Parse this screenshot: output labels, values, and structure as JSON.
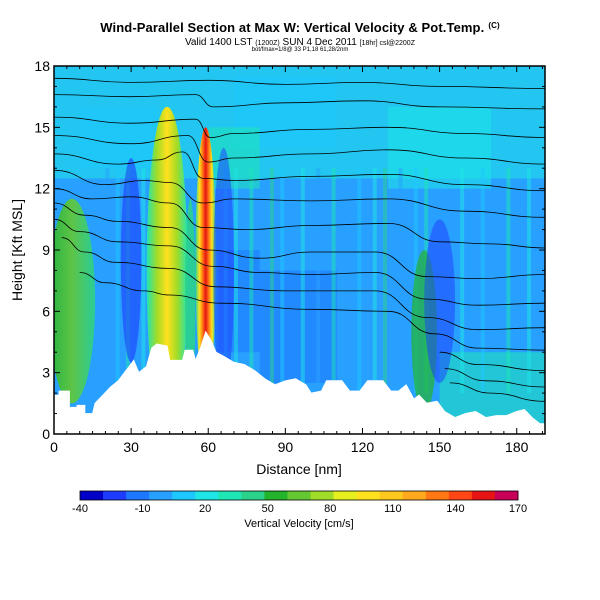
{
  "header": {
    "title": "Wind-Parallel Section at Max W: Vertical Velocity & Pot.Temp.",
    "title_tag": "(C)",
    "valid_line": "Valid 1400 LST",
    "valid_line_small1": "(1200Z)",
    "valid_line_mid": "SUN 4 Dec 2011",
    "valid_line_small2": "[18hr] csl@2200Z",
    "sub_line": "bot/fmax=1/8@ 33 P1,18 61,28/2nm"
  },
  "chart_data": {
    "type": "heatmap",
    "title": "Wind-Parallel Section at Max W: Vertical Velocity & Pot.Temp.",
    "xlabel": "Distance [nm]",
    "ylabel": "Height [Kft MSL]",
    "xlim": [
      0,
      191
    ],
    "ylim": [
      0,
      18
    ],
    "xticks": [
      "0",
      "30",
      "60",
      "90",
      "120",
      "150",
      "180"
    ],
    "xtick_values": [
      0,
      30,
      60,
      90,
      120,
      150,
      180
    ],
    "yticks": [
      "0",
      "3",
      "6",
      "9",
      "12",
      "15",
      "18"
    ],
    "ytick_values": [
      0,
      3,
      6,
      9,
      12,
      15,
      18
    ],
    "colorbar": {
      "label": "Vertical Velocity [cm/s]",
      "tick_labels": [
        "-40",
        "-10",
        "20",
        "50",
        "80",
        "110",
        "140",
        "170"
      ],
      "tick_values": [
        -40,
        -10,
        20,
        50,
        80,
        110,
        140,
        170
      ],
      "colors": [
        "#0000c8",
        "#1e3cff",
        "#1e78ff",
        "#28a0ff",
        "#1ec8ff",
        "#1ee6e6",
        "#1ee6b4",
        "#2ad28c",
        "#24b42c",
        "#64c832",
        "#a0dc28",
        "#e6f01e",
        "#ffe11e",
        "#ffc81e",
        "#ffaa1e",
        "#ff7814",
        "#ff4614",
        "#e61414",
        "#c8005a"
      ]
    },
    "terrain_kft": [
      [
        0,
        1.9
      ],
      [
        2,
        1.9
      ],
      [
        2,
        2.1
      ],
      [
        6,
        2.1
      ],
      [
        6,
        1.3
      ],
      [
        9,
        1.3
      ],
      [
        9,
        1.4
      ],
      [
        12,
        1.4
      ],
      [
        12,
        1.0
      ],
      [
        15,
        1.0
      ],
      [
        16,
        1.5
      ],
      [
        19,
        1.9
      ],
      [
        22,
        2.3
      ],
      [
        25,
        2.6
      ],
      [
        28,
        3.1
      ],
      [
        31,
        3.6
      ],
      [
        33,
        3.0
      ],
      [
        36,
        3.3
      ],
      [
        38,
        4.2
      ],
      [
        40,
        4.4
      ],
      [
        44,
        4.3
      ],
      [
        45,
        3.6
      ],
      [
        50,
        3.6
      ],
      [
        51,
        4.1
      ],
      [
        54,
        4.1
      ],
      [
        55,
        3.6
      ],
      [
        57,
        4.2
      ],
      [
        59,
        5.0
      ],
      [
        61,
        4.6
      ],
      [
        63,
        4.0
      ],
      [
        66,
        3.8
      ],
      [
        70,
        3.5
      ],
      [
        74,
        3.4
      ],
      [
        78,
        3.1
      ],
      [
        82,
        2.7
      ],
      [
        86,
        2.4
      ],
      [
        90,
        2.6
      ],
      [
        94,
        2.7
      ],
      [
        98,
        2.4
      ],
      [
        100,
        2.0
      ],
      [
        104,
        2.1
      ],
      [
        106,
        2.6
      ],
      [
        112,
        2.6
      ],
      [
        115,
        2.1
      ],
      [
        119,
        2.1
      ],
      [
        122,
        2.6
      ],
      [
        128,
        2.6
      ],
      [
        131,
        2.1
      ],
      [
        134,
        2.1
      ],
      [
        137,
        2.4
      ],
      [
        140,
        1.7
      ],
      [
        142,
        1.9
      ],
      [
        145,
        1.5
      ],
      [
        149,
        1.6
      ],
      [
        152,
        1.1
      ],
      [
        156,
        0.8
      ],
      [
        160,
        1.0
      ],
      [
        164,
        1.1
      ],
      [
        168,
        0.8
      ],
      [
        172,
        0.9
      ],
      [
        176,
        0.9
      ],
      [
        180,
        1.1
      ],
      [
        183,
        1.2
      ],
      [
        186,
        0.8
      ],
      [
        189,
        0.5
      ],
      [
        191,
        0.5
      ]
    ],
    "isentropes_kft": [
      [
        [
          0,
          17.4
        ],
        [
          30,
          17.2
        ],
        [
          60,
          17.3
        ],
        [
          90,
          17.1
        ],
        [
          120,
          17.2
        ],
        [
          150,
          17.0
        ],
        [
          191,
          16.9
        ]
      ],
      [
        [
          0,
          16.6
        ],
        [
          30,
          16.5
        ],
        [
          55,
          16.6
        ],
        [
          62,
          16.0
        ],
        [
          90,
          16.2
        ],
        [
          120,
          16.3
        ],
        [
          150,
          16.0
        ],
        [
          191,
          15.9
        ]
      ],
      [
        [
          0,
          15.5
        ],
        [
          30,
          15.2
        ],
        [
          55,
          15.4
        ],
        [
          61,
          14.5
        ],
        [
          70,
          14.7
        ],
        [
          100,
          14.9
        ],
        [
          130,
          15.0
        ],
        [
          160,
          14.7
        ],
        [
          191,
          14.5
        ]
      ],
      [
        [
          0,
          14.6
        ],
        [
          30,
          14.2
        ],
        [
          52,
          14.6
        ],
        [
          60,
          13.3
        ],
        [
          70,
          13.5
        ],
        [
          100,
          13.7
        ],
        [
          130,
          13.9
        ],
        [
          160,
          13.5
        ],
        [
          191,
          13.2
        ]
      ],
      [
        [
          0,
          13.7
        ],
        [
          25,
          13.2
        ],
        [
          40,
          13.4
        ],
        [
          50,
          13.8
        ],
        [
          58,
          12.5
        ],
        [
          70,
          12.4
        ],
        [
          100,
          12.6
        ],
        [
          130,
          12.7
        ],
        [
          160,
          12.2
        ],
        [
          191,
          11.9
        ]
      ],
      [
        [
          0,
          12.9
        ],
        [
          20,
          12.2
        ],
        [
          35,
          12.4
        ],
        [
          45,
          12.3
        ],
        [
          58,
          11.3
        ],
        [
          70,
          11.5
        ],
        [
          100,
          11.4
        ],
        [
          130,
          11.5
        ],
        [
          160,
          10.9
        ],
        [
          191,
          10.6
        ]
      ],
      [
        [
          0,
          12.0
        ],
        [
          15,
          11.5
        ],
        [
          30,
          11.6
        ],
        [
          45,
          11.3
        ],
        [
          58,
          10.1
        ],
        [
          75,
          10.0
        ],
        [
          100,
          10.2
        ],
        [
          130,
          10.3
        ],
        [
          150,
          9.4
        ],
        [
          170,
          9.3
        ],
        [
          191,
          9.1
        ]
      ],
      [
        [
          0,
          11.3
        ],
        [
          12,
          10.7
        ],
        [
          25,
          10.4
        ],
        [
          45,
          10.1
        ],
        [
          60,
          9.0
        ],
        [
          80,
          8.6
        ],
        [
          100,
          8.9
        ],
        [
          125,
          8.9
        ],
        [
          145,
          7.7
        ],
        [
          165,
          7.6
        ],
        [
          191,
          7.8
        ]
      ],
      [
        [
          0,
          10.5
        ],
        [
          10,
          9.9
        ],
        [
          25,
          9.4
        ],
        [
          45,
          9.2
        ],
        [
          62,
          8.2
        ],
        [
          80,
          7.9
        ],
        [
          100,
          7.8
        ],
        [
          125,
          7.9
        ],
        [
          145,
          6.6
        ],
        [
          165,
          6.3
        ],
        [
          191,
          6.4
        ]
      ],
      [
        [
          3,
          9.6
        ],
        [
          12,
          8.9
        ],
        [
          24,
          8.4
        ],
        [
          45,
          8.1
        ],
        [
          63,
          7.2
        ],
        [
          90,
          7.0
        ],
        [
          125,
          7.0
        ],
        [
          145,
          5.7
        ],
        [
          165,
          5.1
        ],
        [
          191,
          5.2
        ]
      ],
      [
        [
          10,
          7.9
        ],
        [
          20,
          7.4
        ],
        [
          35,
          7.0
        ],
        [
          45,
          6.8
        ],
        [
          65,
          6.4
        ],
        [
          100,
          6.1
        ],
        [
          130,
          6.0
        ],
        [
          148,
          4.9
        ],
        [
          165,
          4.2
        ],
        [
          191,
          4.1
        ]
      ],
      [
        [
          150,
          4.0
        ],
        [
          165,
          3.4
        ],
        [
          191,
          3.1
        ]
      ],
      [
        [
          152,
          3.2
        ],
        [
          168,
          2.6
        ],
        [
          191,
          2.3
        ]
      ],
      [
        [
          154,
          2.5
        ],
        [
          170,
          2.0
        ],
        [
          191,
          1.6
        ]
      ]
    ]
  }
}
